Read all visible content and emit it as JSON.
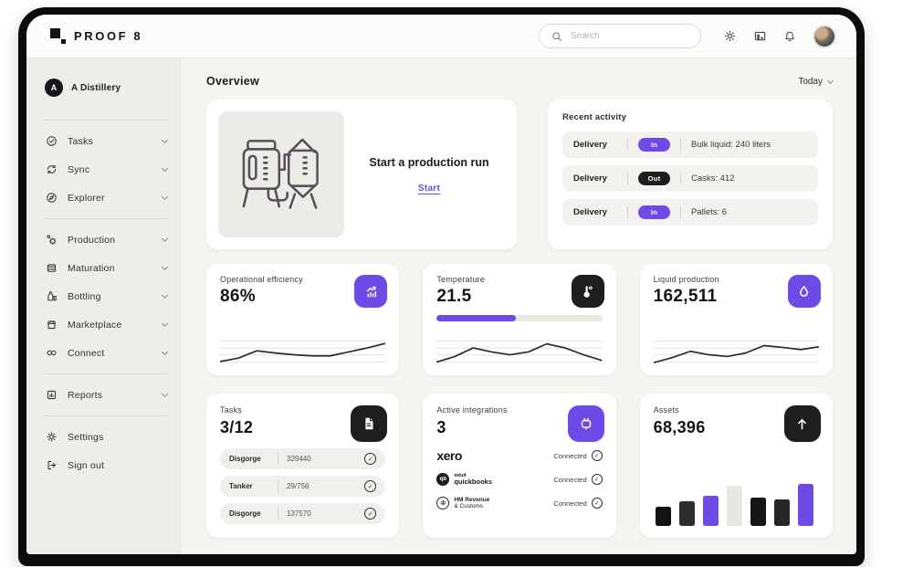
{
  "header": {
    "brand": "PROOF 8",
    "search_placeholder": "Search",
    "icons": [
      "gear-icon",
      "organization-icon",
      "bell-icon",
      "avatar"
    ]
  },
  "sidebar": {
    "workspace": {
      "initial": "A",
      "label": "A Distillery"
    },
    "sections": [
      {
        "items": [
          {
            "label": "Tasks",
            "icon": "check-circle"
          },
          {
            "label": "Sync",
            "icon": "sync-arrows"
          },
          {
            "label": "Explorer",
            "icon": "compass"
          }
        ]
      },
      {
        "items": [
          {
            "label": "Production",
            "icon": "gears"
          },
          {
            "label": "Maturation",
            "icon": "cask"
          },
          {
            "label": "Bottling",
            "icon": "bottle"
          },
          {
            "label": "Marketplace",
            "icon": "storefront"
          },
          {
            "label": "Connect",
            "icon": "link"
          }
        ]
      },
      {
        "items": [
          {
            "label": "Reports",
            "icon": "report-chart"
          }
        ]
      },
      {
        "items": [
          {
            "label": "Settings",
            "icon": "gear"
          },
          {
            "label": "Sign out",
            "icon": "sign-out"
          }
        ]
      }
    ]
  },
  "main": {
    "title": "Overview",
    "date_filter": "Today",
    "production": {
      "title": "Start a production run",
      "cta": "Start"
    },
    "recent_activity": {
      "title": "Recent activity",
      "rows": [
        {
          "type": "Delivery",
          "direction": "In",
          "badge_color": "#6e4ae6",
          "detail": "Bulk liquid: 240 liters"
        },
        {
          "type": "Delivery",
          "direction": "Out",
          "badge_color": "#1e1c20",
          "detail": "Casks: 412"
        },
        {
          "type": "Delivery",
          "direction": "In",
          "badge_color": "#6e4ae6",
          "detail": "Pallets: 6"
        }
      ]
    },
    "stats": [
      {
        "title": "Operational efficiency",
        "value": "86%"
      },
      {
        "title": "Temperature",
        "value": "21.5"
      },
      {
        "title": "Liquid production",
        "value": "162,511"
      }
    ],
    "tasks": {
      "title": "Tasks",
      "value": "3/12",
      "rows": [
        {
          "name": "Disgorge",
          "ref": "329440"
        },
        {
          "name": "Tanker",
          "ref": "29/756"
        },
        {
          "name": "Disgorge",
          "ref": "137570"
        }
      ]
    },
    "integrations": {
      "title": "Active integrations",
      "value": "3",
      "rows": [
        {
          "logo": "xero",
          "status": "Connected"
        },
        {
          "logo_top": "intuit",
          "logo": "quickbooks",
          "logo_badge": "qb",
          "status": "Connected"
        },
        {
          "logo_top": "HM Revenue",
          "logo": "& Customs",
          "logo_badge": "♔",
          "status": "Connected"
        }
      ]
    },
    "assets": {
      "title": "Assets",
      "value": "68,396"
    }
  },
  "colors": {
    "accent": "#6e4ae6",
    "dark_tile": "#1e1c20"
  },
  "chart_data": {
    "efficiency_spark": {
      "type": "line",
      "values": [
        10,
        22,
        48,
        40,
        34,
        30,
        30,
        44,
        58,
        74
      ]
    },
    "temperature_spark": {
      "type": "line",
      "values": [
        8,
        28,
        58,
        44,
        34,
        44,
        72,
        58,
        34,
        14
      ],
      "progress_percent": 48
    },
    "liquid_spark": {
      "type": "line",
      "values": [
        6,
        24,
        46,
        34,
        28,
        40,
        66,
        60,
        52,
        62
      ]
    },
    "assets_bars": {
      "type": "bar",
      "heights_percent": [
        33,
        42,
        52,
        69,
        49,
        45,
        72
      ],
      "colors": [
        "#121212",
        "#2e2c2e",
        "#6e4ae6",
        "#e9e7e2",
        "#161616",
        "#262527",
        "#6e4ae6"
      ]
    }
  }
}
